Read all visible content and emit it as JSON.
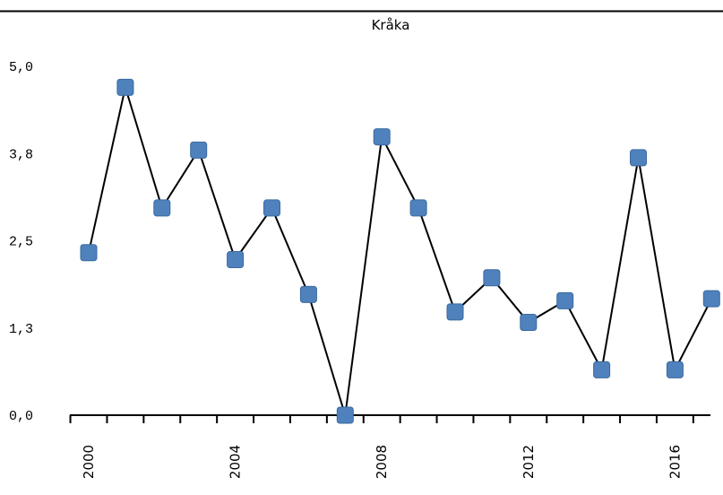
{
  "chart_data": {
    "type": "line",
    "title": "Kråka",
    "xlabel": "",
    "ylabel": "",
    "x": [
      2000,
      2001,
      2002,
      2003,
      2004,
      2005,
      2006,
      2007,
      2008,
      2009,
      2010,
      2011,
      2012,
      2013,
      2014,
      2015,
      2016,
      2017
    ],
    "x_tick_labels": [
      "2000",
      "2004",
      "2008",
      "2012",
      "2016"
    ],
    "x_tick_values": [
      2000,
      2004,
      2008,
      2012,
      2016
    ],
    "y_tick_labels": [
      "0,0",
      "1,3",
      "2,5",
      "3,8",
      "5,0"
    ],
    "y_tick_values": [
      0,
      1.25,
      2.5,
      3.75,
      5.0
    ],
    "ylim": [
      0,
      5.0
    ],
    "series": [
      {
        "values": [
          2.33,
          4.7,
          2.97,
          3.8,
          2.23,
          2.97,
          1.73,
          0.0,
          3.99,
          2.97,
          1.48,
          1.97,
          1.33,
          1.64,
          0.65,
          3.69,
          0.65,
          1.67
        ],
        "line_color": "#000000",
        "marker_color": "#4f81bd",
        "marker": "square"
      }
    ],
    "grid": false,
    "legend": "none"
  }
}
